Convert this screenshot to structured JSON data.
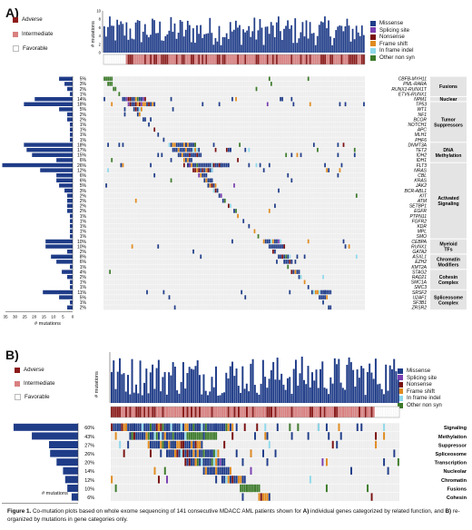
{
  "panelA": {
    "label": "A)",
    "legend_risk": [
      {
        "name": "Adverse",
        "color": "#8b1a1a"
      },
      {
        "name": "Intermediate",
        "color": "#d98080"
      },
      {
        "name": "Favorable",
        "color": "#ffffff"
      }
    ],
    "legend_mut": [
      {
        "name": "Missense",
        "color": "#1f3c88"
      },
      {
        "name": "Splicing site",
        "color": "#7a3fb0"
      },
      {
        "name": "Nonsense",
        "color": "#7a1010"
      },
      {
        "name": "Frame shift",
        "color": "#e08a1e"
      },
      {
        "name": "In frame indel",
        "color": "#8fd8ea"
      },
      {
        "name": "Other non syn",
        "color": "#3c7a2a"
      }
    ],
    "top_axis_label": "# mutations",
    "bottom_axis_label": "# mutations",
    "top_ticks": [
      "0",
      "2",
      "4",
      "6",
      "8",
      "10"
    ],
    "bottom_ticks": [
      "35",
      "30",
      "25",
      "20",
      "15",
      "10",
      "5",
      "0"
    ],
    "genes": [
      {
        "name": "CBFB-MYH11",
        "pct": "5%"
      },
      {
        "name": "PML-RARA",
        "pct": "3%"
      },
      {
        "name": "RUNX1-RUNX1T",
        "pct": "2%"
      },
      {
        "name": "ETV6-RUNX1",
        "pct": "1%"
      },
      {
        "name": "NPM1",
        "pct": "14%"
      },
      {
        "name": "TP53",
        "pct": "18%"
      },
      {
        "name": "WT1",
        "pct": "5%"
      },
      {
        "name": "NF1",
        "pct": "2%"
      },
      {
        "name": "BCOR",
        "pct": "2%"
      },
      {
        "name": "NOTCH1",
        "pct": "1%"
      },
      {
        "name": "APC",
        "pct": "1%"
      },
      {
        "name": "MLH1",
        "pct": "1%"
      },
      {
        "name": "PHF6",
        "pct": "1%"
      },
      {
        "name": "DNMT3A",
        "pct": "18%"
      },
      {
        "name": "TET2",
        "pct": "17%"
      },
      {
        "name": "IDH2",
        "pct": "15%"
      },
      {
        "name": "IDH1",
        "pct": "6%"
      },
      {
        "name": "FLT3",
        "pct": "26%"
      },
      {
        "name": "NRAS",
        "pct": "12%"
      },
      {
        "name": "CBL",
        "pct": "6%"
      },
      {
        "name": "KRAS",
        "pct": "6%"
      },
      {
        "name": "JAK2",
        "pct": "5%"
      },
      {
        "name": "BCR-ABL1",
        "pct": "3%"
      },
      {
        "name": "KIT",
        "pct": "2%"
      },
      {
        "name": "ATM",
        "pct": "2%"
      },
      {
        "name": "SETBP1",
        "pct": "2%"
      },
      {
        "name": "EGFR",
        "pct": "2%"
      },
      {
        "name": "PTPN11",
        "pct": "1%"
      },
      {
        "name": "FGFR2",
        "pct": "1%"
      },
      {
        "name": "KDR",
        "pct": "1%"
      },
      {
        "name": "MPL",
        "pct": "1%"
      },
      {
        "name": "SMO",
        "pct": "1%"
      },
      {
        "name": "CEBPA",
        "pct": "10%"
      },
      {
        "name": "RUNX1",
        "pct": "10%"
      },
      {
        "name": "GATA2",
        "pct": "2%"
      },
      {
        "name": "ASXL1",
        "pct": "8%"
      },
      {
        "name": "EZH2",
        "pct": "6%"
      },
      {
        "name": "KMT2A",
        "pct": "1%"
      },
      {
        "name": "STAG2",
        "pct": "4%"
      },
      {
        "name": "RAD21",
        "pct": "2%"
      },
      {
        "name": "SMC1A",
        "pct": "1%"
      },
      {
        "name": "SMC3",
        "pct": "1%"
      },
      {
        "name": "SRSF2",
        "pct": "11%"
      },
      {
        "name": "U2AF1",
        "pct": "5%"
      },
      {
        "name": "SF3B1",
        "pct": "1%"
      },
      {
        "name": "ZRSR2",
        "pct": "2%"
      }
    ],
    "categories": [
      {
        "name": "Fusions",
        "start": 0,
        "end": 3
      },
      {
        "name": "Nuclear",
        "start": 4,
        "end": 4
      },
      {
        "name": "Tumor Suppressors",
        "start": 5,
        "end": 12
      },
      {
        "name": "DNA Methylation",
        "start": 13,
        "end": 16
      },
      {
        "name": "Activated Signaling",
        "start": 17,
        "end": 31
      },
      {
        "name": "Myeloid TFs",
        "start": 32,
        "end": 34
      },
      {
        "name": "Chromatin Modifiers",
        "start": 35,
        "end": 37
      },
      {
        "name": "Cohesin Complex",
        "start": 38,
        "end": 41
      },
      {
        "name": "Spliceosome Complex",
        "start": 42,
        "end": 45
      }
    ]
  },
  "panelB": {
    "label": "B)",
    "legend_risk": [
      {
        "name": "Adverse",
        "color": "#8b1a1a"
      },
      {
        "name": "Intermediate",
        "color": "#d98080"
      },
      {
        "name": "Favorable",
        "color": "#ffffff"
      }
    ],
    "legend_mut": [
      {
        "name": "Missense",
        "color": "#1f3c88"
      },
      {
        "name": "Splicing site",
        "color": "#7a3fb0"
      },
      {
        "name": "Nonsense",
        "color": "#7a1010"
      },
      {
        "name": "Frame shift",
        "color": "#e08a1e"
      },
      {
        "name": "In frame indel",
        "color": "#8fd8ea"
      },
      {
        "name": "Other non syn",
        "color": "#3c7a2a"
      }
    ],
    "top_axis_label": "# mutations",
    "bottom_axis_label": "# mutations",
    "bottom_ticks": [
      "100",
      "80",
      "60",
      "40",
      "20",
      "0"
    ],
    "rows": [
      {
        "name": "Signaling",
        "pct": "60%"
      },
      {
        "name": "Methylation",
        "pct": "43%"
      },
      {
        "name": "Suppressor",
        "pct": "27%"
      },
      {
        "name": "Spliceosome",
        "pct": "26%"
      },
      {
        "name": "Transcription",
        "pct": "20%"
      },
      {
        "name": "Nucleolar",
        "pct": "14%"
      },
      {
        "name": "Chromatin",
        "pct": "12%"
      },
      {
        "name": "Fusions",
        "pct": "10%"
      },
      {
        "name": "Cohesin",
        "pct": "6%"
      }
    ]
  },
  "caption": {
    "bold_lead": "Figure 1.",
    "text1": " Co-mutation plots based on whole exome sequencing of 141 consecutive MDACC AML patients shown for ",
    "boldA": "A)",
    "text2": " individual genes categorized by related function, and ",
    "boldB": "B)",
    "text3": " re-organized by mutations in gene categories only."
  }
}
